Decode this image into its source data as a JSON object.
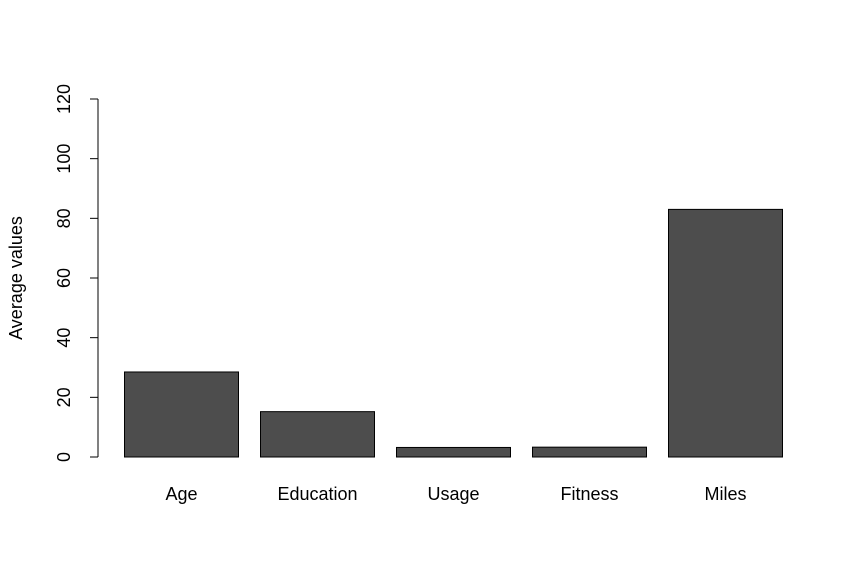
{
  "chart_data": {
    "type": "bar",
    "title": "",
    "xlabel": "",
    "ylabel": "Average values",
    "categories": [
      "Age",
      "Education",
      "Usage",
      "Fitness",
      "Miles"
    ],
    "values": [
      28.5,
      15.2,
      3.2,
      3.3,
      83.0
    ],
    "ylim": [
      0,
      120
    ],
    "yticks": [
      0,
      20,
      40,
      60,
      80,
      100,
      120
    ],
    "bar_color": "#4d4d4d",
    "grid": false,
    "legend": "none"
  }
}
